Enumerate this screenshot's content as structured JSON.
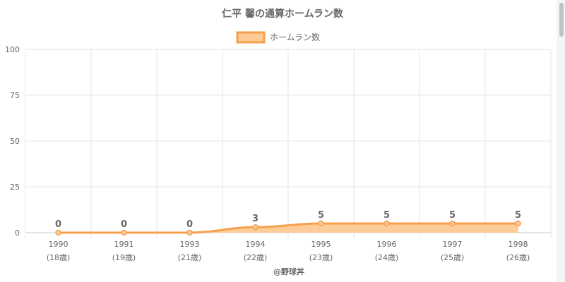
{
  "chart_data": {
    "type": "line",
    "title": "仁平 馨の通算ホームラン数",
    "categories": [
      "1990",
      "1991",
      "1993",
      "1994",
      "1995",
      "1996",
      "1997",
      "1998"
    ],
    "category_sublabels": [
      "(18歳)",
      "(19歳)",
      "(21歳)",
      "(22歳)",
      "(23歳)",
      "(24歳)",
      "(25歳)",
      "(26歳)"
    ],
    "series": [
      {
        "name": "ホームラン数",
        "values": [
          0,
          0,
          0,
          3,
          5,
          5,
          5,
          5
        ]
      }
    ],
    "data_labels": [
      "0",
      "0",
      "0",
      "3",
      "5",
      "5",
      "5",
      "5"
    ],
    "yticks": [
      "100",
      "75",
      "50",
      "25",
      "0"
    ],
    "ylim": [
      0,
      100
    ],
    "fill": "area",
    "grid": true,
    "legend": "top-center",
    "colors": {
      "line": "#f6a04d",
      "fill": "#fdc994",
      "grid": "#e6e6e6",
      "text": "#666666"
    }
  },
  "credit": "@野球丼"
}
